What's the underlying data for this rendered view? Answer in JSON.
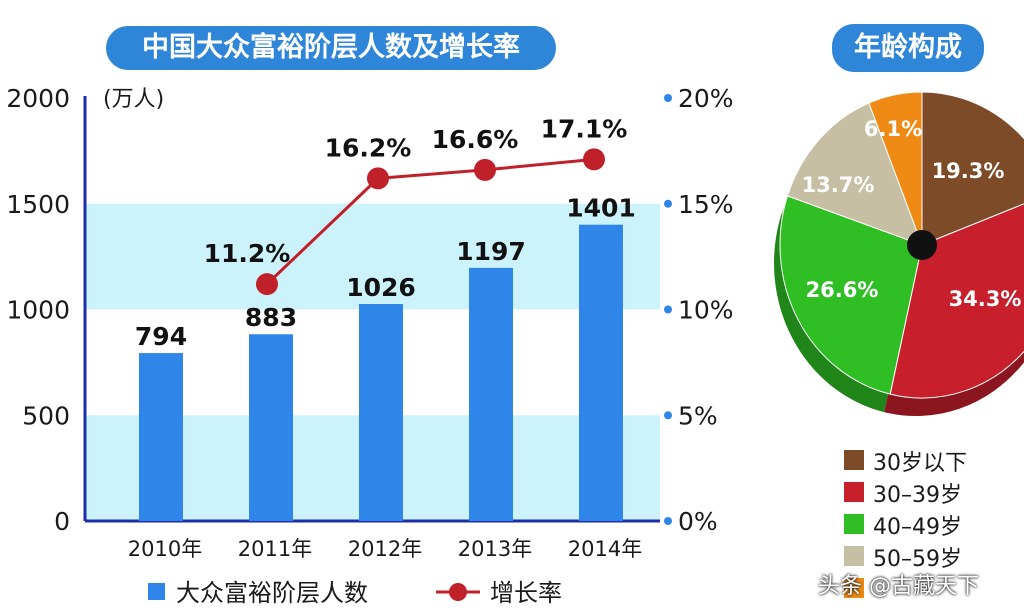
{
  "titles": {
    "main": "中国大众富裕阶层人数及增长率",
    "pie": "年龄构成"
  },
  "watermark": "头条 @古藏天下",
  "chart_data": [
    {
      "type": "bar",
      "title": "中国大众富裕阶层人数及增长率",
      "y_unit": "(万人)",
      "categories": [
        "2010年",
        "2011年",
        "2012年",
        "2013年",
        "2014年"
      ],
      "ylim": [
        0,
        2000
      ],
      "yticks": [
        "0",
        "500",
        "1000",
        "1500",
        "2000"
      ],
      "y2lim": [
        0,
        20
      ],
      "y2ticks": [
        "0%",
        "5%",
        "10%",
        "15%",
        "20%"
      ],
      "series": [
        {
          "name": "大众富裕阶层人数",
          "type": "bar",
          "values": [
            794,
            883,
            1026,
            1197,
            1401
          ],
          "labels": [
            "794",
            "883",
            "1026",
            "1197",
            "1401"
          ],
          "color": "#2f86e8"
        },
        {
          "name": "增长率",
          "type": "line",
          "axis": "right",
          "values": [
            null,
            11.2,
            16.2,
            16.6,
            17.1
          ],
          "labels": [
            "",
            "11.2%",
            "16.2%",
            "16.6%",
            "17.1%"
          ],
          "color": "#c0202a"
        }
      ],
      "colors": {
        "band": "#ccf3fb",
        "axis": "#1d2fa8",
        "tick_dot": "#2f86e8"
      }
    },
    {
      "type": "pie",
      "title": "年龄构成",
      "slices": [
        {
          "label": "30岁以下",
          "value": 19.3,
          "text": "19.3%",
          "color": "#7e4b28"
        },
        {
          "label": "30–39岁",
          "value": 34.3,
          "text": "34.3%",
          "color": "#c81f2d"
        },
        {
          "label": "40–49岁",
          "value": 26.6,
          "text": "26.6%",
          "color": "#2fbf24"
        },
        {
          "label": "50–59岁",
          "value": 13.7,
          "text": "13.7%",
          "color": "#c6bfa4"
        },
        {
          "label": "",
          "value": 6.1,
          "text": "6.1%",
          "color": "#ef8a15"
        }
      ]
    }
  ]
}
